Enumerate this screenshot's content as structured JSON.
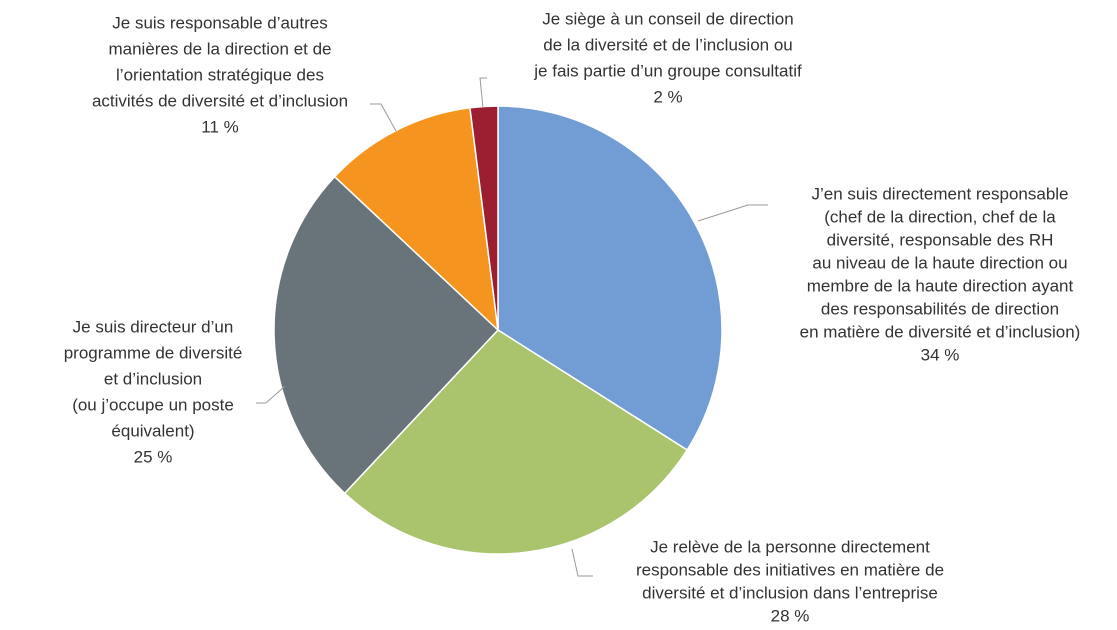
{
  "chart_data": {
    "type": "pie",
    "categories": [
      [
        "J’en suis directement responsable",
        "(chef de la direction, chef de la",
        "diversité, responsable des RH",
        "au niveau de la haute direction ou",
        "membre de la haute direction ayant",
        "des responsabilités de direction",
        "en matière de diversité et d’inclusion)"
      ],
      [
        "Je relève de la personne directement",
        "responsable des initiatives en matière de",
        "diversité et d’inclusion dans l’entreprise"
      ],
      [
        "Je suis directeur d’un",
        "programme de diversité",
        "et d’inclusion",
        "(ou j’occupe un poste",
        "équivalent)"
      ],
      [
        "Je suis responsable d’autres",
        "manières de la direction et de",
        "l’orientation stratégique des",
        "activités de diversité et d’inclusion"
      ],
      [
        "Je siège à un conseil de direction",
        "de la diversité et de l’inclusion ou",
        "je fais partie d’un groupe consultatif"
      ]
    ],
    "values": [
      34,
      28,
      25,
      11,
      2
    ],
    "value_labels": [
      "34 %",
      "28 %",
      "25 %",
      "11 %",
      "2 %"
    ],
    "colors": [
      "#729dd4",
      "#aac46e",
      "#68737a",
      "#f5951f",
      "#9c1f31"
    ]
  }
}
